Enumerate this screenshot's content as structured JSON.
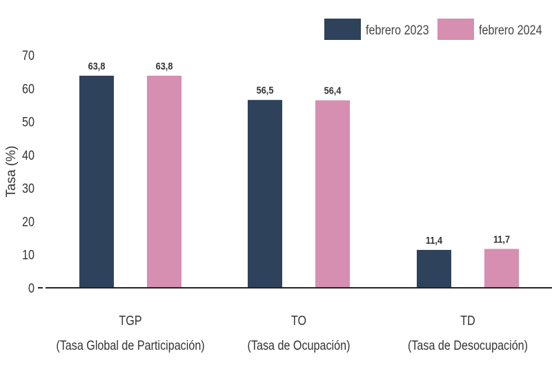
{
  "chart_data": {
    "type": "bar",
    "title": "",
    "xlabel": "",
    "ylabel": "Tasa (%)",
    "ylim": [
      0,
      70
    ],
    "yticks": [
      0,
      10,
      20,
      30,
      40,
      50,
      60,
      70
    ],
    "grid": false,
    "legend_position": "top-right",
    "categories": [
      {
        "line1": "TGP",
        "line2": "(Tasa Global de Participación)"
      },
      {
        "line1": "TO",
        "line2": "(Tasa de Ocupación)"
      },
      {
        "line1": "TD",
        "line2": "(Tasa de Desocupación)"
      }
    ],
    "series": [
      {
        "name": "febrero 2023",
        "color": "#2e425c",
        "values": [
          63.8,
          56.5,
          11.4
        ],
        "labels": [
          "63,8",
          "56,5",
          "11,4"
        ]
      },
      {
        "name": "febrero 2024",
        "color": "#d68fb0",
        "values": [
          63.8,
          56.4,
          11.7
        ],
        "labels": [
          "63,8",
          "56,4",
          "11,7"
        ]
      }
    ]
  }
}
